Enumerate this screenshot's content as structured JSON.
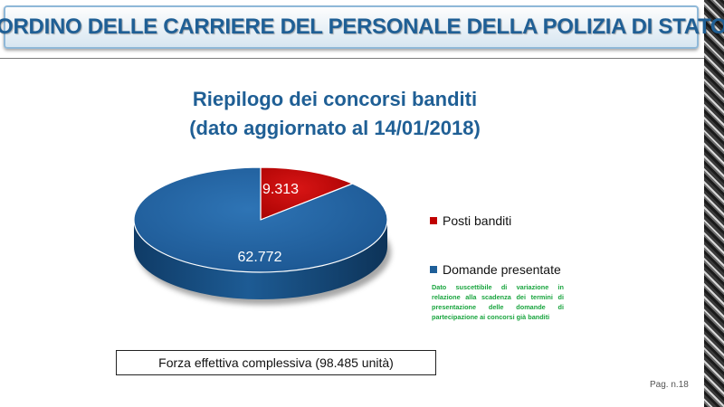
{
  "header": {
    "title": "RIORDINO DELLE CARRIERE DEL PERSONALE DELLA POLIZIA DI STATO"
  },
  "chart_data": {
    "type": "pie",
    "title_lines": [
      "Riepilogo dei concorsi banditi",
      "(dato aggiornato al 14/01/2018)"
    ],
    "slices": [
      {
        "name": "Posti banditi",
        "value": 9313,
        "label": "9.313",
        "color": "#c00000"
      },
      {
        "name": "Domande presentate",
        "value": 62772,
        "label": "62.772",
        "color": "#1f5f99"
      }
    ],
    "legend_position": "right",
    "note": "Dato suscettibile di variazione in relazione alla scadenza dei termini di presentazione delle domande di partecipazione ai concorsi già banditi"
  },
  "footer": {
    "forza_text": "Forza effettiva complessiva (98.485 unità)",
    "page": "Pag. n.18"
  }
}
